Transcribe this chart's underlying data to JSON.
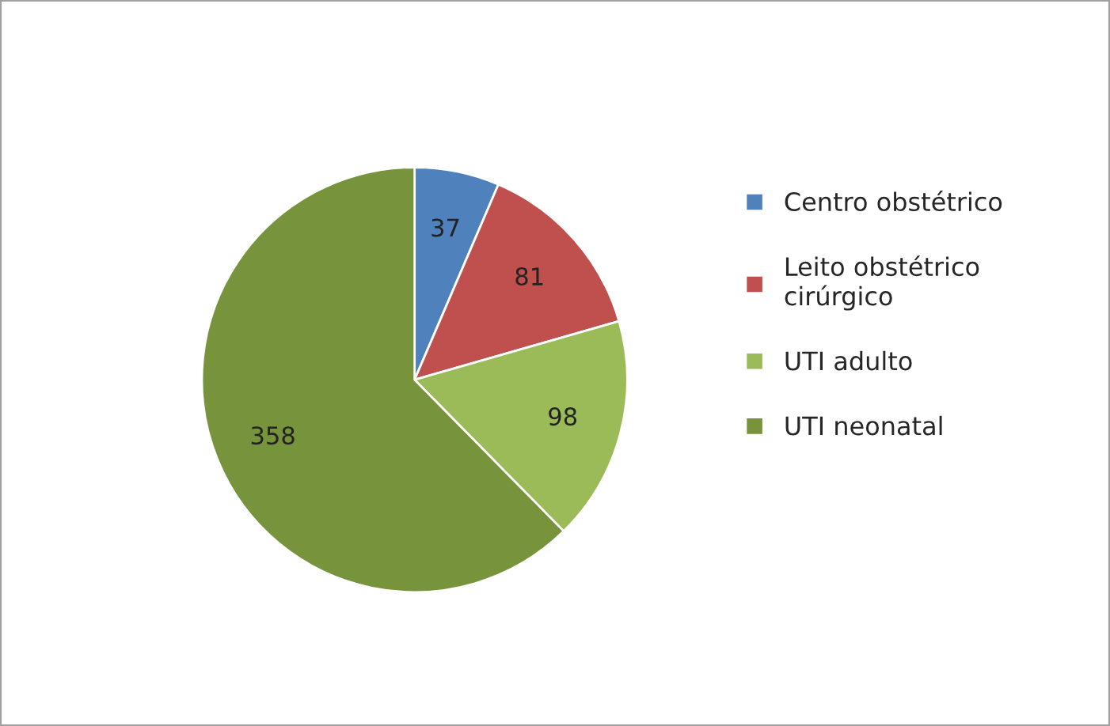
{
  "chart_data": {
    "type": "pie",
    "categories": [
      "Centro obstétrico",
      "Leito obstétrico\ncirúrgico",
      "UTI adulto",
      "UTI neonatal"
    ],
    "values": [
      37,
      81,
      98,
      358
    ],
    "colors": [
      "#4f81bd",
      "#c0504d",
      "#9bbb59",
      "#77933c"
    ],
    "data_labels": true,
    "legend": "right"
  }
}
